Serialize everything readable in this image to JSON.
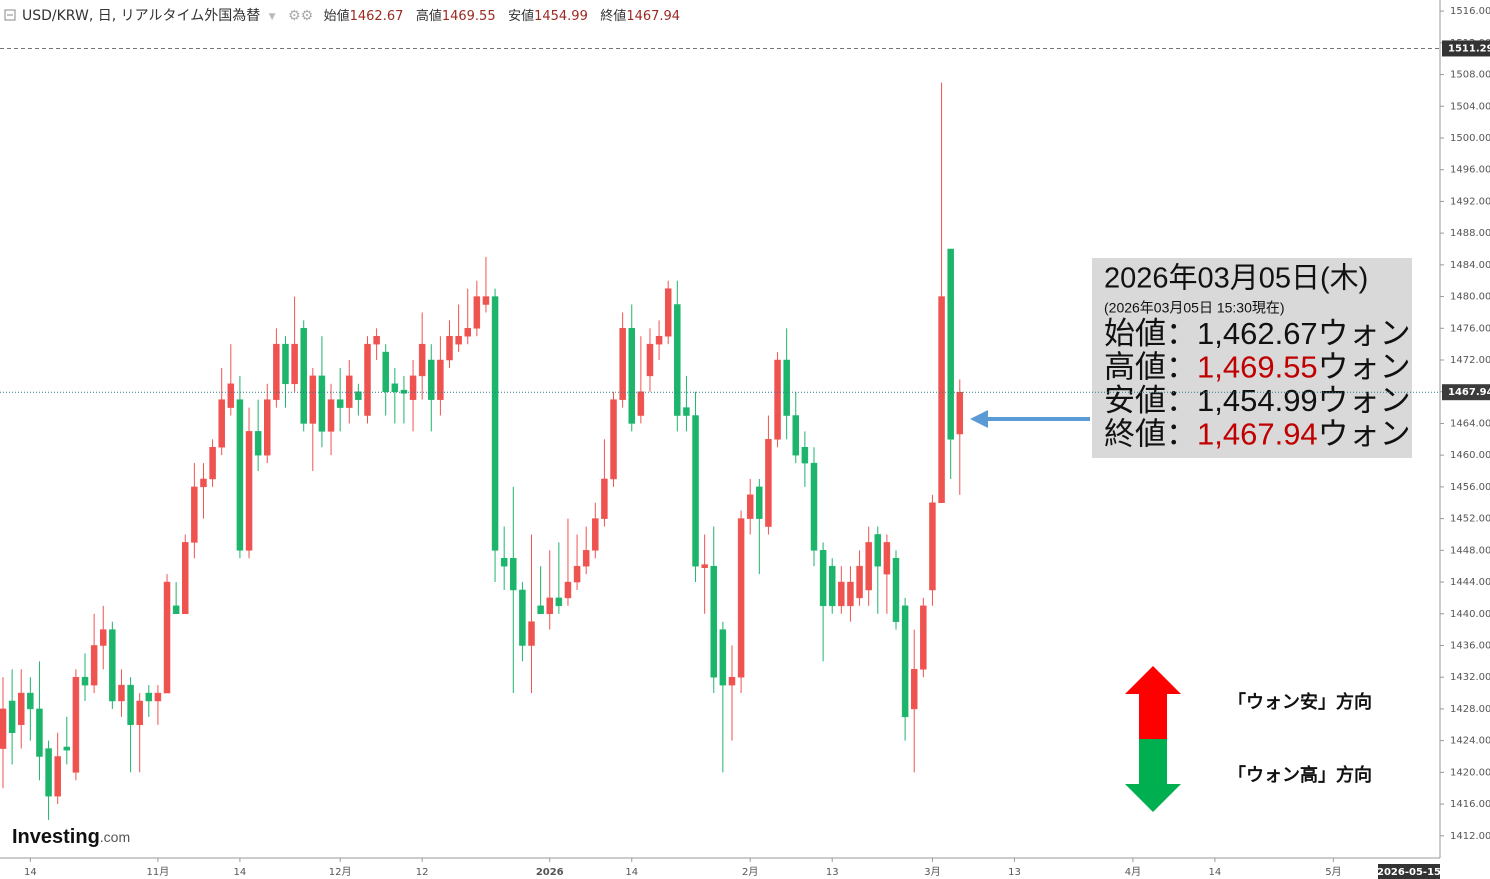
{
  "chart_data": {
    "type": "candlestick",
    "title": "USD/KRW, 日, リアルタイム外国為替",
    "ohlc_labels": {
      "open": "始値",
      "high": "高値",
      "low": "安値",
      "close": "終値"
    },
    "open": [
      1423,
      1429,
      1426,
      1430,
      1428,
      1423,
      1417,
      1423.2,
      1420,
      1432,
      1431,
      1436,
      1438,
      1429,
      1431,
      1426,
      1430,
      1429,
      1430,
      1441,
      1440,
      1449,
      1456,
      1457,
      1461,
      1466,
      1467,
      1448,
      1463,
      1460,
      1467,
      1474,
      1469,
      1476,
      1464,
      1470,
      1463,
      1467,
      1466,
      1468,
      1465,
      1474,
      1473,
      1469,
      1468.2,
      1467,
      1470,
      1472,
      1467,
      1472,
      1474,
      1475,
      1476,
      1479,
      1480,
      1447,
      1447,
      1443,
      1436,
      1441,
      1440,
      1442,
      1442,
      1444,
      1446,
      1448,
      1452,
      1457,
      1467,
      1476,
      1465,
      1470,
      1474,
      1475,
      1479,
      1466,
      1465,
      1445.8,
      1446,
      1438,
      1431,
      1432,
      1452,
      1456,
      1451,
      1462,
      1472,
      1465,
      1461,
      1459,
      1448,
      1446,
      1441,
      1441,
      1442,
      1443,
      1450,
      1445,
      1447,
      1441,
      1428,
      1433,
      1443,
      1454,
      1486,
      1462.67
    ],
    "high": [
      1432,
      1433,
      1433,
      1432,
      1434,
      1424,
      1425,
      1427,
      1433,
      1435,
      1440,
      1441,
      1439,
      1433,
      1432,
      1430,
      1431,
      1431,
      1445,
      1444,
      1450,
      1459,
      1459,
      1462,
      1471,
      1474,
      1470,
      1466,
      1467,
      1469,
      1476,
      1475,
      1480,
      1477,
      1471,
      1475,
      1469,
      1471,
      1472,
      1469,
      1475,
      1476,
      1474,
      1471,
      1470,
      1472,
      1478,
      1474,
      1475,
      1477,
      1479,
      1481,
      1482,
      1485,
      1481,
      1451,
      1456,
      1444,
      1450,
      1446,
      1448,
      1449,
      1452,
      1450,
      1451,
      1454,
      1462,
      1468,
      1478,
      1479,
      1475,
      1476,
      1477,
      1482,
      1482,
      1470,
      1468,
      1450,
      1451,
      1439,
      1436,
      1453,
      1457,
      1457,
      1465,
      1473,
      1476,
      1468,
      1463,
      1461,
      1449,
      1447,
      1446,
      1446,
      1448,
      1451,
      1451,
      1450,
      1448,
      1442,
      1438,
      1442,
      1455,
      1507,
      1486,
      1469.55
    ],
    "low": [
      1418,
      1421,
      1423,
      1424,
      1419,
      1414,
      1416,
      1421,
      1419,
      1429,
      1430,
      1433,
      1428,
      1427,
      1420,
      1420,
      1427,
      1426,
      1430,
      1440,
      1440,
      1447,
      1452,
      1456,
      1460,
      1465,
      1447,
      1447,
      1458,
      1459,
      1466,
      1466,
      1468,
      1463,
      1458,
      1461,
      1460,
      1463,
      1464,
      1465,
      1464,
      1472,
      1465,
      1464,
      1464,
      1463,
      1467,
      1463,
      1465,
      1471,
      1473,
      1474,
      1475,
      1478,
      1444,
      1443,
      1430,
      1434,
      1430,
      1440,
      1438,
      1440,
      1441,
      1443,
      1445,
      1447,
      1451,
      1456,
      1466,
      1463,
      1464,
      1468,
      1472,
      1474,
      1463,
      1463,
      1444,
      1440,
      1430,
      1420,
      1424,
      1430,
      1450,
      1445,
      1450,
      1461,
      1462,
      1459,
      1456,
      1446,
      1434,
      1440,
      1440,
      1439,
      1441,
      1441,
      1440,
      1440,
      1438,
      1424,
      1420,
      1432,
      1441,
      1454,
      1457,
      1454.99
    ],
    "close": [
      1428,
      1425,
      1430,
      1428,
      1422,
      1417,
      1422,
      1422.8,
      1432,
      1431,
      1436,
      1438,
      1429,
      1431,
      1426,
      1429,
      1429,
      1430,
      1444,
      1440,
      1449,
      1456,
      1457,
      1461,
      1467,
      1469,
      1448,
      1463,
      1460,
      1467,
      1474,
      1469,
      1474,
      1464,
      1470,
      1463,
      1467,
      1466,
      1470,
      1467,
      1474,
      1475,
      1468,
      1468,
      1467.8,
      1470,
      1474,
      1467,
      1472,
      1475,
      1475,
      1476,
      1480,
      1480,
      1448,
      1446,
      1443,
      1436,
      1439,
      1440,
      1442,
      1441,
      1444,
      1446,
      1448,
      1452,
      1457,
      1467,
      1476,
      1464,
      1468,
      1474,
      1475,
      1481,
      1465,
      1465,
      1446,
      1446.2,
      1432,
      1431,
      1432,
      1452,
      1455,
      1452,
      1462,
      1472,
      1465,
      1460,
      1459,
      1448,
      1441,
      1441,
      1444,
      1444,
      1446,
      1449,
      1446,
      1449,
      1439,
      1427,
      1433,
      1441,
      1454,
      1480,
      1462,
      1467.94
    ],
    "up_color": "#ef5350",
    "down_color": "#1db56c",
    "xlim": [
      -0.33,
      157.7
    ],
    "xticks": [
      {
        "value": 3,
        "label": "14"
      },
      {
        "value": 17,
        "label": "11月"
      },
      {
        "value": 26,
        "label": "14"
      },
      {
        "value": 37,
        "label": "12月"
      },
      {
        "value": 46,
        "label": "12"
      },
      {
        "value": 60,
        "label": "2026"
      },
      {
        "value": 69,
        "label": "14"
      },
      {
        "value": 82,
        "label": "2月"
      },
      {
        "value": 91,
        "label": "13"
      },
      {
        "value": 102,
        "label": "3月"
      },
      {
        "value": 111,
        "label": "13"
      },
      {
        "value": 124,
        "label": "4月"
      },
      {
        "value": 133,
        "label": "14"
      },
      {
        "value": 146,
        "label": "5月"
      }
    ],
    "x_end_label": "2026-05-15",
    "ylim": [
      1409.2,
      1517.4
    ],
    "yticks": [
      {
        "value": 1412,
        "label": "1412.00"
      },
      {
        "value": 1416,
        "label": "1416.00"
      },
      {
        "value": 1420,
        "label": "1420.00"
      },
      {
        "value": 1424,
        "label": "1424.00"
      },
      {
        "value": 1428,
        "label": "1428.00"
      },
      {
        "value": 1432,
        "label": "1432.00"
      },
      {
        "value": 1436,
        "label": "1436.00"
      },
      {
        "value": 1440,
        "label": "1440.00"
      },
      {
        "value": 1444,
        "label": "1444.00"
      },
      {
        "value": 1448,
        "label": "1448.00"
      },
      {
        "value": 1452,
        "label": "1452.00"
      },
      {
        "value": 1456,
        "label": "1456.00"
      },
      {
        "value": 1460,
        "label": "1460.00"
      },
      {
        "value": 1464,
        "label": "1464.00"
      },
      {
        "value": 1468,
        "label": "1468.00"
      },
      {
        "value": 1472,
        "label": "1472.00"
      },
      {
        "value": 1476,
        "label": "1476.00"
      },
      {
        "value": 1480,
        "label": "1480.00"
      },
      {
        "value": 1484,
        "label": "1484.00"
      },
      {
        "value": 1488,
        "label": "1488.00"
      },
      {
        "value": 1492,
        "label": "1492.00"
      },
      {
        "value": 1496,
        "label": "1496.00"
      },
      {
        "value": 1500,
        "label": "1500.00"
      },
      {
        "value": 1504,
        "label": "1504.00"
      },
      {
        "value": 1508,
        "label": "1508.00"
      },
      {
        "value": 1512,
        "label": "1512.00"
      },
      {
        "value": 1516,
        "label": "1516.00"
      }
    ],
    "ref_line": 1511.29,
    "info_box": {
      "date": "2026年03月05日(木)",
      "as_of": "(2026年03月05日 15:30現在)",
      "rows": [
        {
          "label": "始値：",
          "value": {
            "value": 1462.67,
            "label": "1,462.67"
          },
          "unit": "ウォン",
          "color": "#111111"
        },
        {
          "label": "高値：",
          "value": {
            "value": 1469.55,
            "label": "1,469.55"
          },
          "unit": "ウォン",
          "color": "#c00000"
        },
        {
          "label": "安値：",
          "value": {
            "value": 1454.99,
            "label": "1,454.99"
          },
          "unit": "ウォン",
          "color": "#111111"
        },
        {
          "label": "終値：",
          "value": {
            "value": 1467.94,
            "label": "1,467.94"
          },
          "unit": "ウォン",
          "color": "#c00000"
        }
      ]
    },
    "direction_up": "「ウォン安」方向",
    "direction_down": "「ウォン高」方向",
    "logo": {
      "brand": "Investing",
      "suffix": ".com"
    }
  }
}
